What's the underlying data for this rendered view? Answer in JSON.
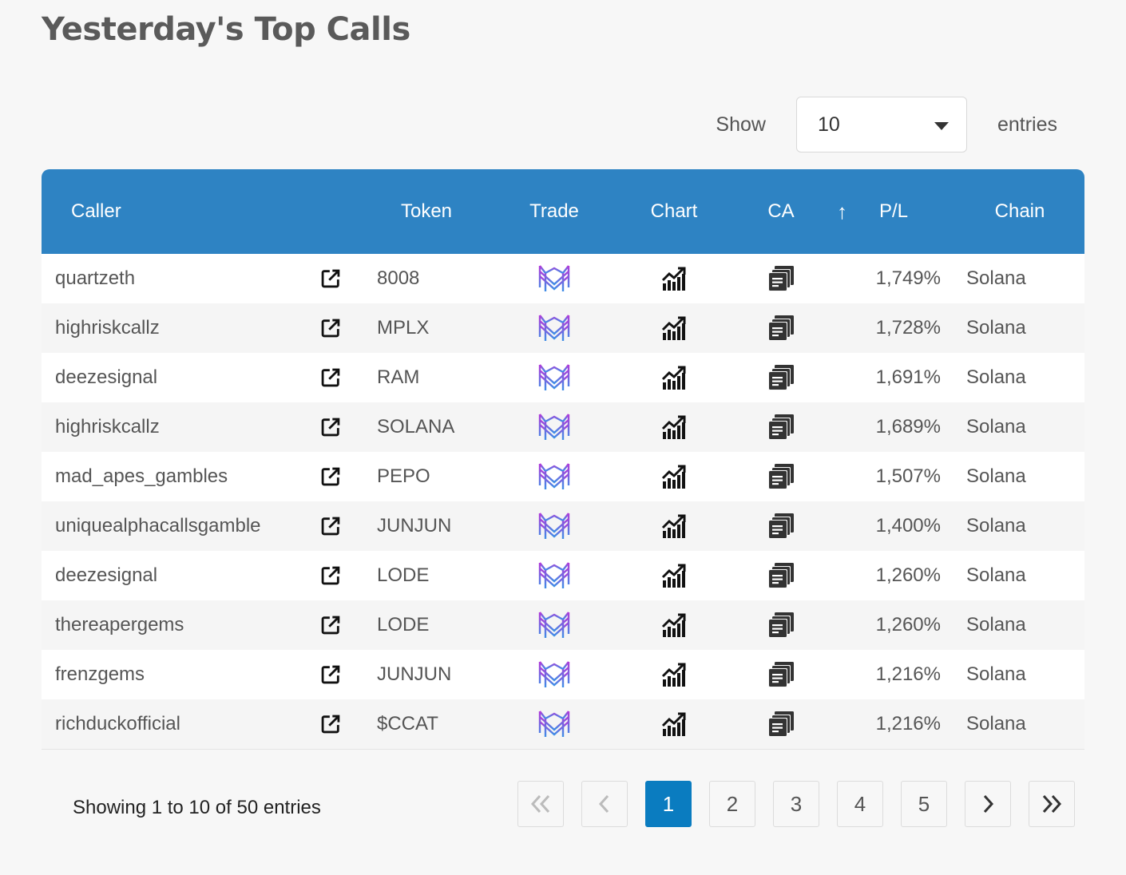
{
  "page": {
    "title": "Yesterday's Top Calls"
  },
  "length_control": {
    "show_label": "Show",
    "value": "10",
    "entries_label": "entries"
  },
  "table": {
    "headers": {
      "caller": "Caller",
      "token": "Token",
      "trade": "Trade",
      "chart": "Chart",
      "ca": "CA",
      "pl": "P/L",
      "chain": "Chain",
      "sort_indicator": "↑"
    },
    "rows": [
      {
        "caller": "quartzeth",
        "token": "8008",
        "pl": "1,749%",
        "chain": "Solana"
      },
      {
        "caller": "highriskcallz",
        "token": "MPLX",
        "pl": "1,728%",
        "chain": "Solana"
      },
      {
        "caller": "deezesignal",
        "token": "RAM",
        "pl": "1,691%",
        "chain": "Solana"
      },
      {
        "caller": "highriskcallz",
        "token": "SOLANA",
        "pl": "1,689%",
        "chain": "Solana"
      },
      {
        "caller": "mad_apes_gambles",
        "token": "PEPO",
        "pl": "1,507%",
        "chain": "Solana"
      },
      {
        "caller": "uniquealphacallsgamble",
        "token": "JUNJUN",
        "pl": "1,400%",
        "chain": "Solana"
      },
      {
        "caller": "deezesignal",
        "token": "LODE",
        "pl": "1,260%",
        "chain": "Solana"
      },
      {
        "caller": "thereapergems",
        "token": "LODE",
        "pl": "1,260%",
        "chain": "Solana"
      },
      {
        "caller": "frenzgems",
        "token": "JUNJUN",
        "pl": "1,216%",
        "chain": "Solana"
      },
      {
        "caller": "richduckofficial",
        "token": "$CCAT",
        "pl": "1,216%",
        "chain": "Solana"
      }
    ],
    "icons": {
      "link": "external-link-icon",
      "trade": "trade-logo-icon",
      "chart": "chart-trend-icon",
      "ca": "copy-icon"
    }
  },
  "footer": {
    "info": "Showing 1 to 10 of 50 entries",
    "pages": [
      "1",
      "2",
      "3",
      "4",
      "5"
    ],
    "current_page": "1"
  },
  "colors": {
    "header_bg": "#2e83c3",
    "active_page": "#0a7cc0",
    "trade_logo_purple": "#a23dd8",
    "trade_logo_blue": "#3d8ee6"
  }
}
